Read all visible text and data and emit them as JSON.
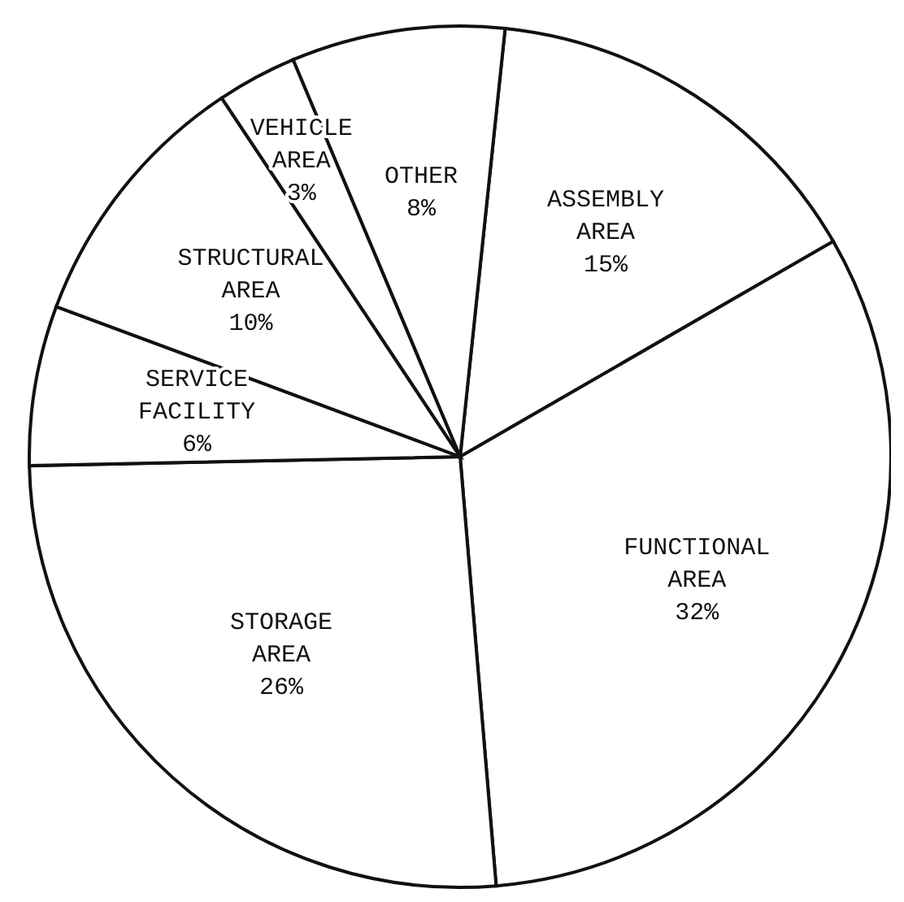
{
  "chart_data": {
    "type": "pie",
    "categories": [
      "ASSEMBLY AREA",
      "FUNCTIONAL AREA",
      "STORAGE AREA",
      "SERVICE FACILITY",
      "STRUCTURAL AREA",
      "VEHICLE AREA",
      "OTHER"
    ],
    "values": [
      15,
      32,
      26,
      6,
      10,
      3,
      8
    ],
    "value_labels": [
      "15%",
      "32%",
      "26%",
      "6%",
      "10%",
      "3%",
      "8%"
    ],
    "colors": [
      "#ffffff",
      "#ffffff",
      "#ffffff",
      "#ffffff",
      "#ffffff",
      "#ffffff",
      "#ffffff"
    ]
  }
}
